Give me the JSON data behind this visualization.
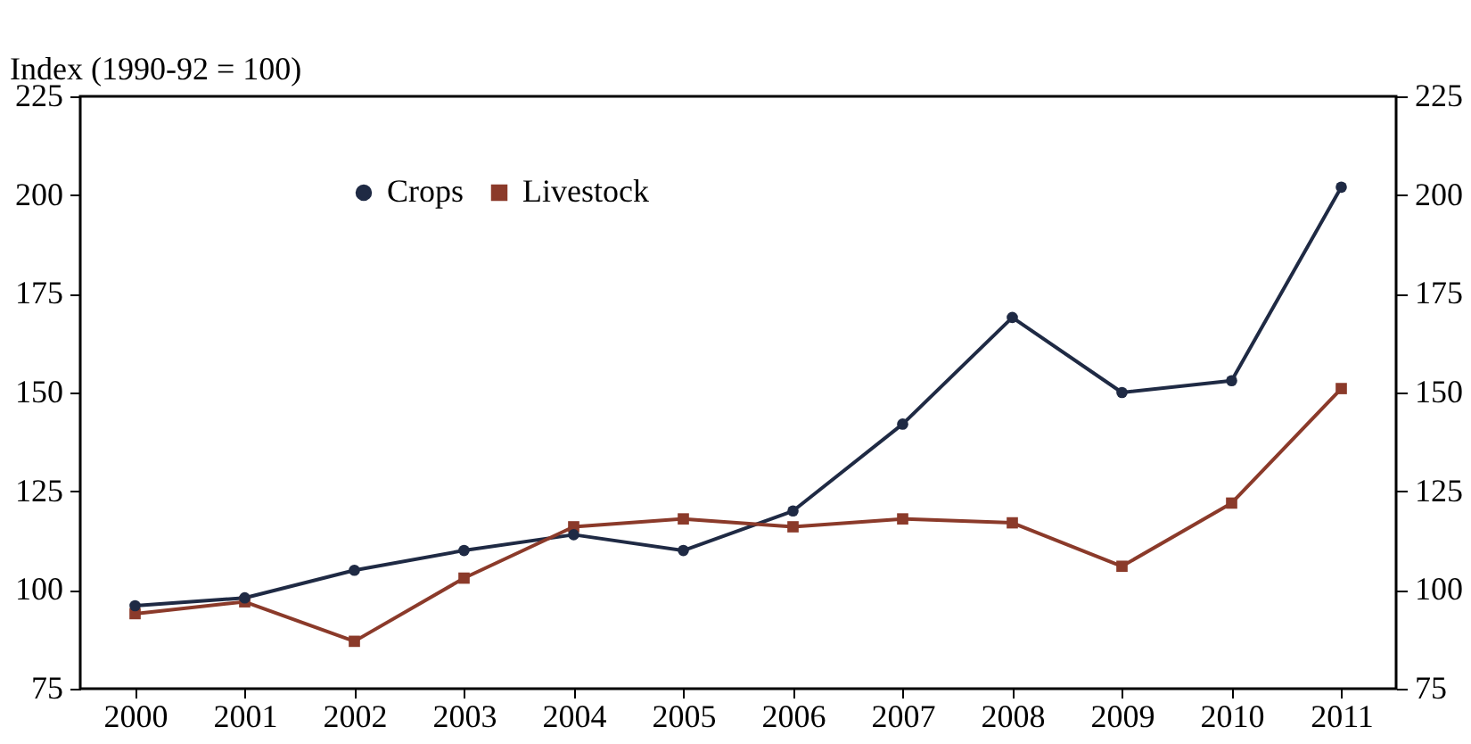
{
  "chart_data": {
    "type": "line",
    "ylabel": "Index (1990-92 = 100)",
    "categories": [
      "2000",
      "2001",
      "2002",
      "2003",
      "2004",
      "2005",
      "2006",
      "2007",
      "2008",
      "2009",
      "2010",
      "2011"
    ],
    "series": [
      {
        "name": "Crops",
        "color": "#1f2a44",
        "marker": "circle",
        "values": [
          96,
          98,
          105,
          110,
          114,
          110,
          120,
          142,
          169,
          150,
          153,
          202
        ]
      },
      {
        "name": "Livestock",
        "color": "#8b3a2a",
        "marker": "square",
        "values": [
          94,
          97,
          87,
          103,
          116,
          118,
          116,
          118,
          117,
          106,
          122,
          151
        ]
      }
    ],
    "ylim": [
      75,
      225
    ],
    "yticks": [
      75,
      100,
      125,
      150,
      175,
      200,
      225
    ],
    "y2lim": [
      75,
      225
    ],
    "y2ticks": [
      75,
      100,
      125,
      150,
      175,
      200,
      225
    ],
    "grid": false,
    "legend": "top left",
    "line_style": "solid"
  }
}
